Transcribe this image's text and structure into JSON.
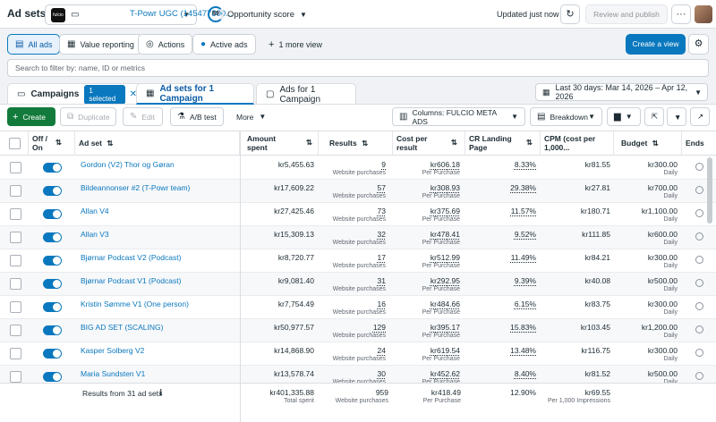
{
  "header": {
    "title": "Ad sets",
    "account_logo": "fulcio",
    "account_name": "T-Powr UGC (145477800...",
    "score_value": "69",
    "score_label": "Opportunity score",
    "updated": "Updated just now",
    "review_publish": "Review and publish",
    "more": "···"
  },
  "nav": {
    "all_ads": "All ads",
    "value_reporting": "Value reporting",
    "actions": "Actions",
    "active_ads": "Active ads",
    "more_view": "1 more view",
    "create_view": "Create a view"
  },
  "filter_placeholder": "Search to filter by: name, ID or metrics",
  "tabs": {
    "campaigns": "Campaigns",
    "selected": "1 selected",
    "adsets": "Ad sets for 1 Campaign",
    "ads": "Ads for 1 Campaign"
  },
  "date_range": "Last 30 days: Mar 14, 2026 – Apr 12, 2026",
  "toolbar": {
    "create": "Create",
    "duplicate": "Duplicate",
    "edit": "Edit",
    "ab_test": "A/B test",
    "more": "More",
    "columns": "Columns: FULCIO META ADS",
    "breakdown": "Breakdown"
  },
  "columns": {
    "off_on": "Off / On",
    "ad_set": "Ad set",
    "amount_spent": "Amount spent",
    "results": "Results",
    "cost_per_result": "Cost per result",
    "cr_landing": "CR Landing Page",
    "cpm": "CPM (cost per 1,000...",
    "budget": "Budget",
    "ends": "Ends"
  },
  "rows": [
    {
      "name": "Gordon (V2) Thor og Gøran",
      "spent": "kr5,455.63",
      "results": "9",
      "results_sub": "Website purchases",
      "cost": "kr606.18",
      "cost_sub": "Per Purchase",
      "cr": "8.33%",
      "cpm": "kr81.55",
      "budget": "kr300.00",
      "budget_sub": "Daily"
    },
    {
      "name": "Bildeannonser #2 (T-Powr team)",
      "spent": "kr17,609.22",
      "results": "57",
      "results_sub": "Website purchases",
      "cost": "kr308.93",
      "cost_sub": "Per Purchase",
      "cr": "29.38%",
      "cpm": "kr27.81",
      "budget": "kr700.00",
      "budget_sub": "Daily"
    },
    {
      "name": "Allan V4",
      "spent": "kr27,425.46",
      "results": "73",
      "results_sub": "Website purchases",
      "cost": "kr375.69",
      "cost_sub": "Per Purchase",
      "cr": "11.57%",
      "cpm": "kr180.71",
      "budget": "kr1,100.00",
      "budget_sub": "Daily"
    },
    {
      "name": "Allan V3",
      "spent": "kr15,309.13",
      "results": "32",
      "results_sub": "Website purchases",
      "cost": "kr478.41",
      "cost_sub": "Per Purchase",
      "cr": "9.52%",
      "cpm": "kr111.85",
      "budget": "kr600.00",
      "budget_sub": "Daily"
    },
    {
      "name": "Bjørnar Podcast V2 (Podcast)",
      "spent": "kr8,720.77",
      "results": "17",
      "results_sub": "Website purchases",
      "cost": "kr512.99",
      "cost_sub": "Per Purchase",
      "cr": "11.49%",
      "cpm": "kr84.21",
      "budget": "kr300.00",
      "budget_sub": "Daily"
    },
    {
      "name": "Bjørnar Podcast V1 (Podcast)",
      "spent": "kr9,081.40",
      "results": "31",
      "results_sub": "Website purchases",
      "cost": "kr292.95",
      "cost_sub": "Per Purchase",
      "cr": "9.39%",
      "cpm": "kr40.08",
      "budget": "kr500.00",
      "budget_sub": "Daily"
    },
    {
      "name": "Kristin Sømme V1 (One person)",
      "spent": "kr7,754.49",
      "results": "16",
      "results_sub": "Website purchases",
      "cost": "kr484.66",
      "cost_sub": "Per Purchase",
      "cr": "6.15%",
      "cpm": "kr83.75",
      "budget": "kr300.00",
      "budget_sub": "Daily"
    },
    {
      "name": "BIG AD SET (SCALING)",
      "spent": "kr50,977.57",
      "results": "129",
      "results_sub": "Website purchases",
      "cost": "kr395.17",
      "cost_sub": "Per Purchase",
      "cr": "15.83%",
      "cpm": "kr103.45",
      "budget": "kr1,200.00",
      "budget_sub": "Daily"
    },
    {
      "name": "Kasper Solberg V2",
      "spent": "kr14,868.90",
      "results": "24",
      "results_sub": "Website purchases",
      "cost": "kr619.54",
      "cost_sub": "Per Purchase",
      "cr": "13.48%",
      "cpm": "kr116.75",
      "budget": "kr300.00",
      "budget_sub": "Daily"
    },
    {
      "name": "Maria Sundsten V1",
      "spent": "kr13,578.74",
      "results": "30",
      "results_sub": "Website purchases",
      "cost": "kr452.62",
      "cost_sub": "Per Purchase",
      "cr": "8.40%",
      "cpm": "kr81.52",
      "budget": "kr500.00",
      "budget_sub": "Daily"
    }
  ],
  "totals": {
    "label": "Results from 31 ad sets",
    "spent": "kr401,335.88",
    "spent_sub": "Total spent",
    "results": "959",
    "results_sub": "Website purchases",
    "cost": "kr418.49",
    "cost_sub": "Per Purchase",
    "cr": "12.90%",
    "cpm": "kr69.55",
    "cpm_sub": "Per 1,000 Impressions"
  },
  "colors": {
    "accent": "#0a78be",
    "create_green": "#127b3b"
  }
}
